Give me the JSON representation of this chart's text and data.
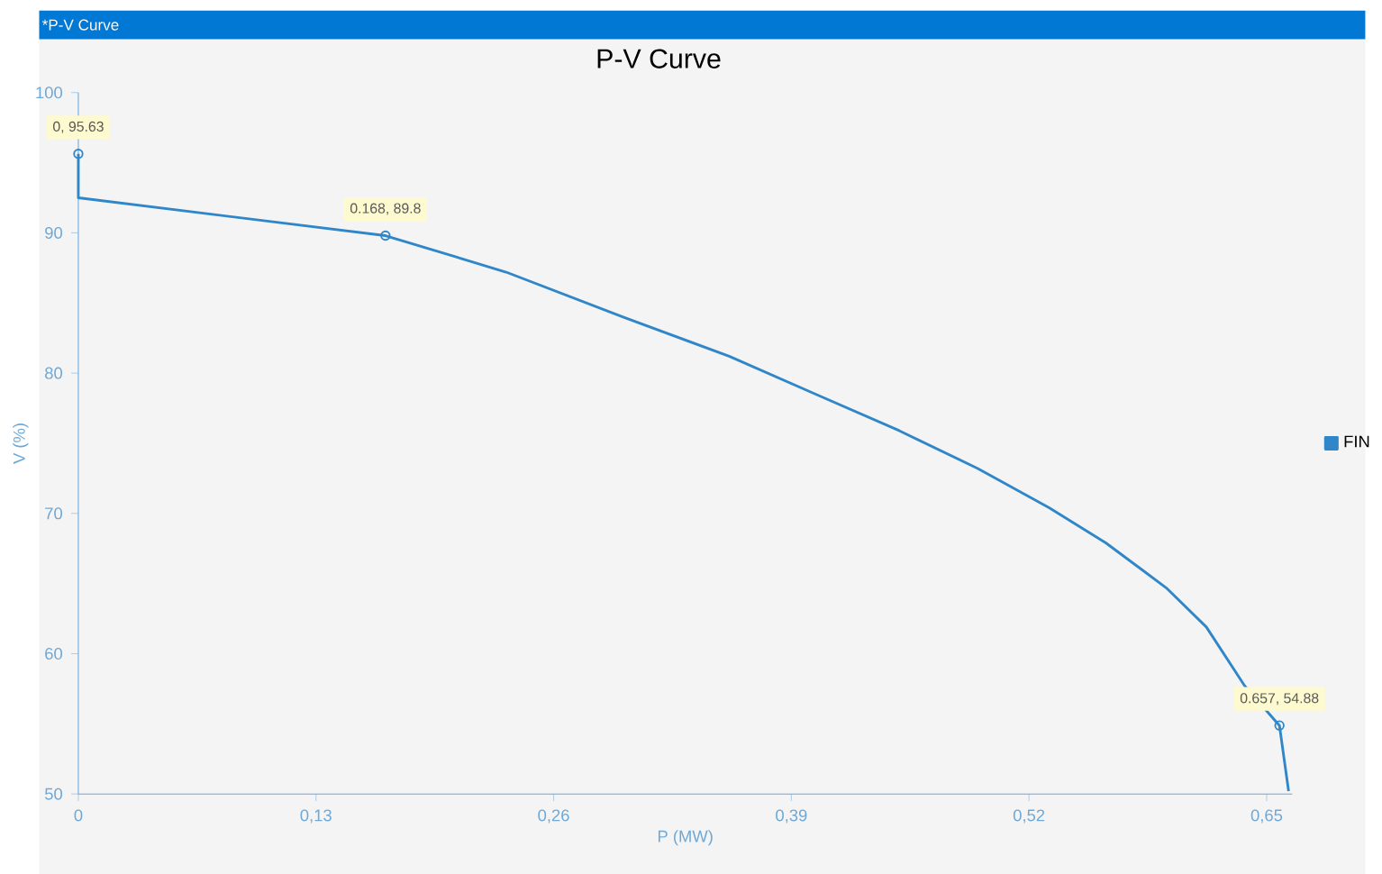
{
  "chart_data": {
    "type": "line",
    "title": "P-V Curve",
    "subtitle": "*P-V Curve",
    "xlabel": "P (MW)",
    "ylabel": "V (%)",
    "xlim": [
      0,
      0.664
    ],
    "ylim": [
      50,
      100
    ],
    "xticks": [
      0,
      {
        "value": 0.13,
        "label": "0,13"
      },
      {
        "value": 0.26,
        "label": "0,26"
      },
      {
        "value": 0.39,
        "label": "0,39"
      },
      {
        "value": 0.52,
        "label": "0,52"
      },
      {
        "value": 0.65,
        "label": "0,65"
      }
    ],
    "yticks": [
      50,
      60,
      70,
      80,
      90,
      100
    ],
    "grid": false,
    "legend": "right",
    "series": [
      {
        "name": "FIN",
        "color": "#2f86c8",
        "marker": "none",
        "x": [
          0,
          0,
          0.168,
          0.234,
          0.298,
          0.356,
          0.405,
          0.449,
          0.492,
          0.531,
          0.562,
          0.595,
          0.617,
          0.638,
          0.657,
          0.662
        ],
        "values": [
          95.63,
          92.5,
          89.8,
          87.2,
          84.0,
          81.2,
          78.4,
          75.9,
          73.2,
          70.4,
          67.9,
          64.7,
          61.9,
          57.7,
          54.88,
          50.2
        ]
      },
      {
        "type": "scatter",
        "color": "#2f86c8",
        "marker": "circle",
        "x": [
          0,
          0.168,
          0.657
        ],
        "values": [
          95.63,
          89.8,
          54.88
        ]
      }
    ],
    "annotations": [
      {
        "text": "0, 95.63",
        "x": 0,
        "y": 95.63
      },
      {
        "text": "0.168, 89.8",
        "x": 0.168,
        "y": 89.8
      },
      {
        "text": "0.657, 54.88",
        "x": 0.657,
        "y": 54.88
      }
    ]
  }
}
